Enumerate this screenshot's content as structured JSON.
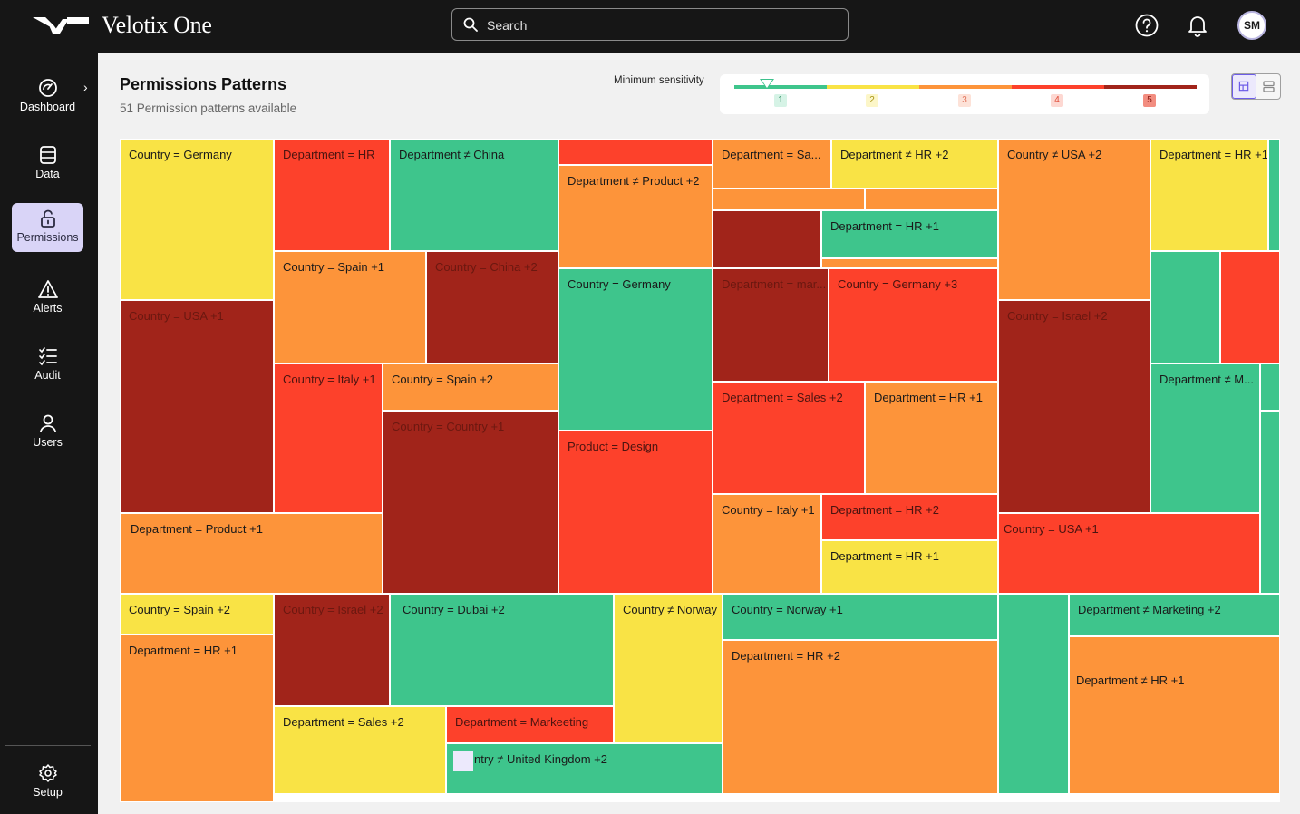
{
  "app": {
    "title": "Velotix One",
    "brand_color": "#161616",
    "accent_color": "#d9d4f7"
  },
  "header": {
    "search_placeholder": "Search",
    "help_icon": "help-icon",
    "notifications_icon": "bell-icon",
    "avatar_initials": "SM"
  },
  "sidebar": {
    "items": [
      {
        "label": "Dashboard",
        "icon": "dashboard-gauge-icon"
      },
      {
        "label": "Data",
        "icon": "database-icon"
      },
      {
        "label": "Permissions",
        "icon": "lock-icon",
        "active": true
      },
      {
        "label": "Alerts",
        "icon": "warning-icon"
      },
      {
        "label": "Audit",
        "icon": "checklist-icon"
      },
      {
        "label": "Users",
        "icon": "user-icon"
      }
    ],
    "setup": {
      "label": "Setup",
      "icon": "gear-icon"
    }
  },
  "page": {
    "title": "Permissions Patterns",
    "subtitle": "51 Permission patterns available"
  },
  "sensitivity": {
    "label": "Minimum sensitivity",
    "selected": 1,
    "levels": [
      {
        "n": "1",
        "color": "#3ec58c"
      },
      {
        "n": "2",
        "color": "#f9e345"
      },
      {
        "n": "3",
        "color": "#fd943a"
      },
      {
        "n": "4",
        "color": "#fd412b"
      },
      {
        "n": "5",
        "color": "#a1241a"
      }
    ]
  },
  "view_toggle": {
    "options": [
      "treemap-view",
      "list-view"
    ],
    "selected": "treemap-view"
  },
  "treemap": {
    "colors": {
      "yellow": "#f9e345",
      "red": "#fd412b",
      "green": "#3ec58c",
      "orange": "#fd943a",
      "dark": "#a1241a"
    },
    "cells": [
      {
        "label": "Country = Germany",
        "color": "yellow"
      },
      {
        "label": "Department = HR",
        "color": "red"
      },
      {
        "label": "Department ≠ China",
        "color": "green"
      },
      {
        "label": "",
        "color": "red"
      },
      {
        "label": "Department = Sa...",
        "color": "orange"
      },
      {
        "label": "Department ≠ HR +2",
        "color": "yellow"
      },
      {
        "label": "Country ≠ USA +2",
        "color": "orange"
      },
      {
        "label": "Department = HR +1",
        "color": "yellow"
      },
      {
        "label": "",
        "color": "green"
      },
      {
        "label": "Department ≠ Product +2",
        "color": "orange"
      },
      {
        "label": "",
        "color": "orange"
      },
      {
        "label": "",
        "color": "orange"
      },
      {
        "label": "",
        "color": "dark"
      },
      {
        "label": "Department  =  HR  +1",
        "color": "green"
      },
      {
        "label": "",
        "color": "orange"
      },
      {
        "label": "Country = Spain +1",
        "color": "orange"
      },
      {
        "label": "Country = China +2",
        "color": "dark"
      },
      {
        "label": "Country  =  Germany",
        "color": "green"
      },
      {
        "label": "Department  =  mar...",
        "color": "dark"
      },
      {
        "label": "Country  =  Germany  +3",
        "color": "red"
      },
      {
        "label": "",
        "color": "green"
      },
      {
        "label": "",
        "color": "red"
      },
      {
        "label": "Country = USA +1",
        "color": "dark"
      },
      {
        "label": "Country  =  Israel  +2",
        "color": "dark"
      },
      {
        "label": "Country = Italy +1",
        "color": "red"
      },
      {
        "label": "Country = Spain +2",
        "color": "orange"
      },
      {
        "label": "Department  ≠  M...",
        "color": "green"
      },
      {
        "label": "",
        "color": "green"
      },
      {
        "label": "Department  =  Sales  +2",
        "color": "red"
      },
      {
        "label": "Department  =  HR  +1",
        "color": "orange"
      },
      {
        "label": "Country = Country +1",
        "color": "dark"
      },
      {
        "label": "Product  =  Design",
        "color": "red"
      },
      {
        "label": "",
        "color": "green"
      },
      {
        "label": "Country  =  Italy  +1",
        "color": "orange"
      },
      {
        "label": "Department  =  HR  +2",
        "color": "red"
      },
      {
        "label": "Department = Product +1",
        "color": "orange"
      },
      {
        "label": "Country  =  USA  +1",
        "color": "red"
      },
      {
        "label": "Department  =  HR  +1",
        "color": "yellow"
      },
      {
        "label": "Country = Spain +2",
        "color": "yellow"
      },
      {
        "label": "Country = Israel +2",
        "color": "dark"
      },
      {
        "label": "Country = Dubai +2",
        "color": "green"
      },
      {
        "label": "Country ≠ Norway",
        "color": "yellow"
      },
      {
        "label": "Country  =  Norway  +1",
        "color": "green"
      },
      {
        "label": "",
        "color": "green"
      },
      {
        "label": "Department  ≠  Marketing  +2",
        "color": "green"
      },
      {
        "label": "Department = HR +1",
        "color": "orange"
      },
      {
        "label": "Department  =  HR  +2",
        "color": "orange"
      },
      {
        "label": "Department  ≠  HR  +1",
        "color": "orange"
      },
      {
        "label": "Department = Sales +2",
        "color": "yellow"
      },
      {
        "label": "Department = Markeeting",
        "color": "red"
      },
      {
        "label": "ntry ≠ United Kingdom +2",
        "color": "green"
      }
    ]
  }
}
